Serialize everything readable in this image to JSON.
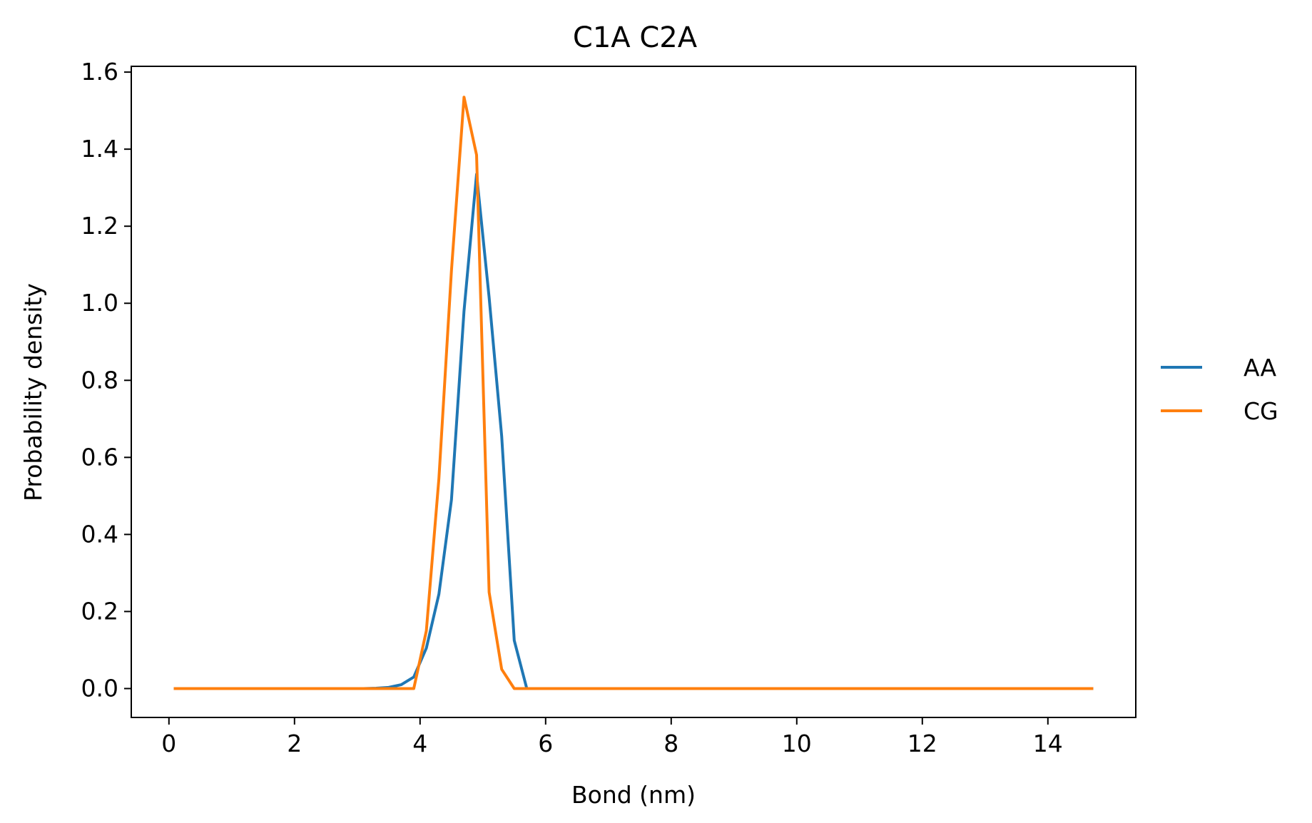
{
  "chart_data": {
    "type": "line",
    "title": "C1A C2A",
    "xlabel": "Bond (nm)",
    "ylabel": "Probability density",
    "xlim": [
      -0.6,
      15.4
    ],
    "ylim": [
      -0.075,
      1.615
    ],
    "xticks": [
      0,
      2,
      4,
      6,
      8,
      10,
      12,
      14
    ],
    "yticks": [
      0.0,
      0.2,
      0.4,
      0.6,
      0.8,
      1.0,
      1.2,
      1.4,
      1.6
    ],
    "xtick_labels": [
      "0",
      "2",
      "4",
      "6",
      "8",
      "10",
      "12",
      "14"
    ],
    "ytick_labels": [
      "0.0",
      "0.2",
      "0.4",
      "0.6",
      "0.8",
      "1.0",
      "1.2",
      "1.4",
      "1.6"
    ],
    "grid": false,
    "legend": "center-right-outside",
    "series": [
      {
        "name": "AA",
        "color": "#1f77b4",
        "x": [
          0.1,
          3.1,
          3.3,
          3.5,
          3.7,
          3.9,
          4.1,
          4.3,
          4.5,
          4.7,
          4.9,
          5.1,
          5.3,
          5.5,
          5.7,
          5.9,
          14.7
        ],
        "y": [
          0.0,
          0.0,
          0.001,
          0.003,
          0.01,
          0.03,
          0.105,
          0.245,
          0.49,
          0.98,
          1.335,
          1.015,
          0.655,
          0.125,
          0.0,
          0.0,
          0.0
        ]
      },
      {
        "name": "CG",
        "color": "#ff7f0e",
        "x": [
          0.1,
          3.7,
          3.9,
          4.1,
          4.3,
          4.5,
          4.7,
          4.9,
          5.1,
          5.3,
          5.5,
          5.7,
          14.7
        ],
        "y": [
          0.0,
          0.0,
          0.0,
          0.15,
          0.545,
          1.085,
          1.535,
          1.385,
          0.25,
          0.05,
          0.0,
          0.0,
          0.0
        ]
      }
    ]
  }
}
